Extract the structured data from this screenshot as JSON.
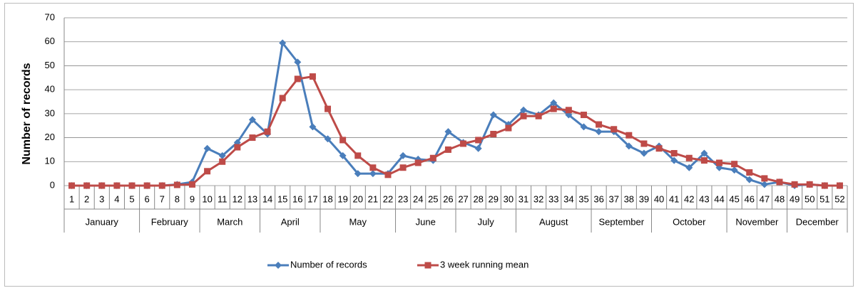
{
  "chart_data": {
    "type": "line",
    "y_label": "Number of records",
    "categories": [
      "1",
      "2",
      "3",
      "4",
      "5",
      "6",
      "7",
      "8",
      "9",
      "10",
      "11",
      "12",
      "13",
      "14",
      "15",
      "16",
      "17",
      "18",
      "19",
      "20",
      "21",
      "22",
      "23",
      "24",
      "25",
      "26",
      "27",
      "28",
      "29",
      "30",
      "31",
      "32",
      "33",
      "34",
      "35",
      "36",
      "37",
      "38",
      "39",
      "40",
      "41",
      "42",
      "43",
      "44",
      "45",
      "46",
      "47",
      "48",
      "49",
      "50",
      "51",
      "52"
    ],
    "category_groups": [
      "January",
      "January",
      "January",
      "January",
      "January",
      "February",
      "February",
      "February",
      "February",
      "March",
      "March",
      "March",
      "March",
      "April",
      "April",
      "April",
      "April",
      "May",
      "May",
      "May",
      "May",
      "May",
      "June",
      "June",
      "June",
      "June",
      "July",
      "July",
      "July",
      "July",
      "August",
      "August",
      "August",
      "August",
      "August",
      "September",
      "September",
      "September",
      "September",
      "October",
      "October",
      "October",
      "October",
      "October",
      "November",
      "November",
      "November",
      "November",
      "December",
      "December",
      "December",
      "December"
    ],
    "series": [
      {
        "name": "Number of records",
        "color": "#4a7ebb",
        "marker": "diamond",
        "values": [
          0,
          0,
          0,
          0,
          0,
          0,
          0,
          0.5,
          1.5,
          15.5,
          12.5,
          18,
          27.5,
          21.5,
          59.5,
          51.5,
          24.5,
          19.5,
          12.5,
          5,
          5,
          5,
          12.5,
          11,
          10.5,
          22.5,
          18,
          15.5,
          29.5,
          25.5,
          31.5,
          29.5,
          34.5,
          29.5,
          24.5,
          22.5,
          22.5,
          16.5,
          13.5,
          16.5,
          10.5,
          7.5,
          13.5,
          7.5,
          6.5,
          2.5,
          0.5,
          1.5,
          0,
          0.5,
          0,
          0
        ]
      },
      {
        "name": "3 week running mean",
        "color": "#be4b48",
        "marker": "square",
        "values": [
          0,
          0,
          0,
          0,
          0,
          0,
          0,
          0.3,
          0.5,
          6,
          10,
          16,
          20,
          22.5,
          36.5,
          44.5,
          45.5,
          32,
          19,
          12.5,
          7.5,
          4.5,
          7.5,
          9.5,
          11.5,
          15,
          17.5,
          19,
          21.5,
          24,
          29,
          29,
          32,
          31.5,
          29.5,
          25.5,
          23.5,
          21,
          17.5,
          15.5,
          13.5,
          11.5,
          10.5,
          9.5,
          9,
          5.5,
          3,
          1.5,
          0.5,
          0.5,
          0,
          0
        ]
      }
    ],
    "ylim": [
      0,
      70
    ],
    "yticks": [
      0,
      10,
      20,
      30,
      40,
      50,
      60,
      70
    ],
    "grid": true,
    "legend": "bottom"
  }
}
